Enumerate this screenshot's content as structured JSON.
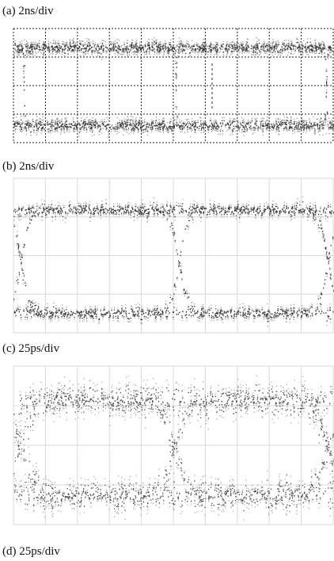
{
  "figure": {
    "captions": [
      "(a) 2ns/div",
      "(b) 2ns/div",
      "(c) 25ps/div",
      "(d) 25ps/div"
    ]
  }
}
